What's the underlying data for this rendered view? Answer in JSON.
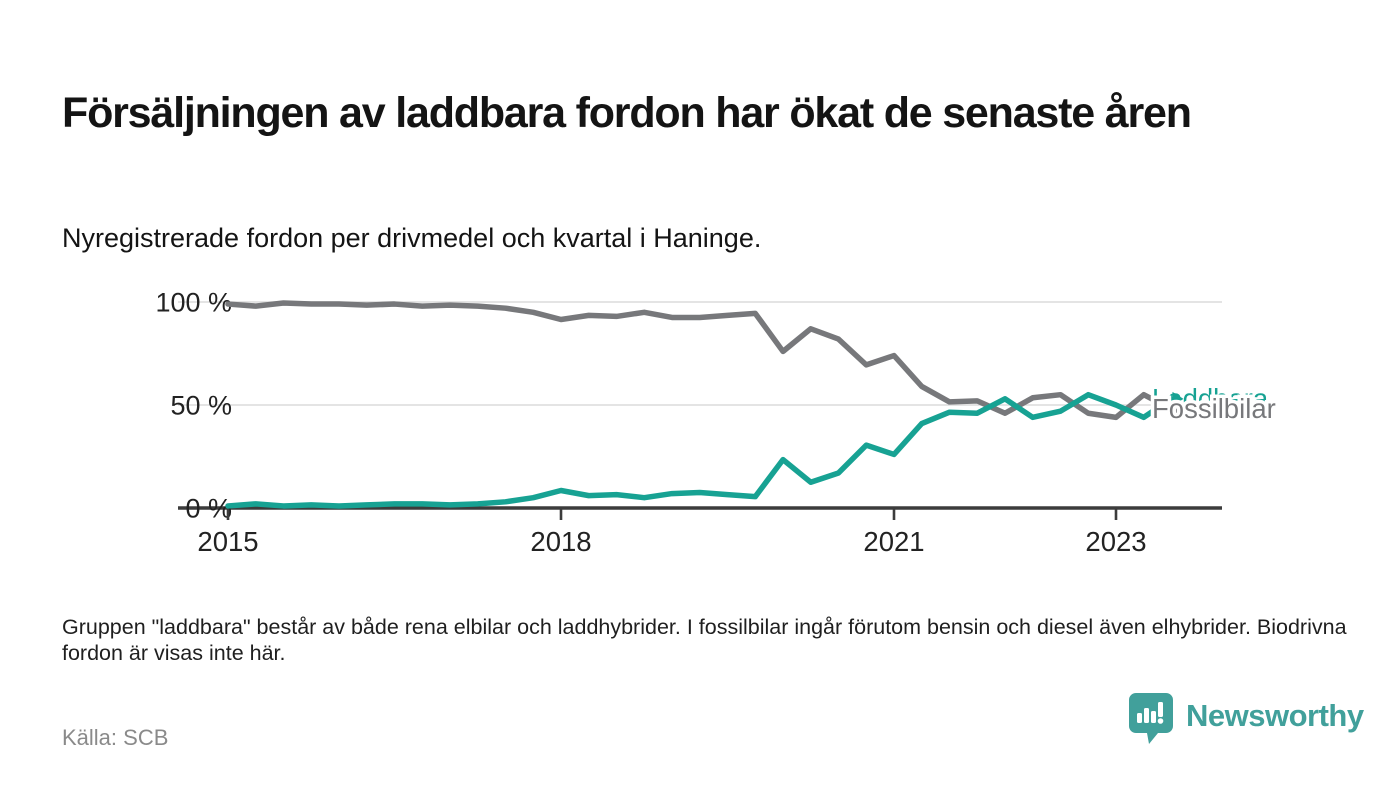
{
  "title": "Försäljningen av laddbara fordon har ökat de senaste åren",
  "subtitle": "Nyregistrerade fordon per drivmedel och kvartal i Haninge.",
  "note": "Gruppen \"laddbara\" består av både rena elbilar och laddhybrider. I fossilbilar ingår förutom bensin och diesel även elhybrider. Biodrivna fordon är visas inte här.",
  "source": "Källa: SCB",
  "branding": {
    "name": "Newsworthy",
    "color": "#41a09b",
    "icon": "speech-bubble-bar-chart-exclamation-icon"
  },
  "colors": {
    "fossil_gray": "#77787b",
    "laddbara_teal": "#17a293",
    "grid": "#dcdcdc",
    "axis": "#3c3c3c",
    "text_dark": "#222222"
  },
  "chart_data": {
    "type": "line",
    "x_unit": "quarter",
    "x_start": 2015.0,
    "x_step": 0.25,
    "x_end": 2023.5,
    "ylim": [
      0,
      100
    ],
    "grid": "horizontal gridlines at 50% and 100%, dark baseline at 0%",
    "legend_position": "end-of-line labels at right",
    "yticks": [
      {
        "value": 0,
        "label": "0 %"
      },
      {
        "value": 50,
        "label": "50 %"
      },
      {
        "value": 100,
        "label": "100 %"
      }
    ],
    "xticks": [
      {
        "value": 2015,
        "label": "2015"
      },
      {
        "value": 2018,
        "label": "2018"
      },
      {
        "value": 2021,
        "label": "2021"
      },
      {
        "value": 2023,
        "label": "2023"
      }
    ],
    "series": [
      {
        "name": "Fossilbilar",
        "color": "#77787b",
        "values": [
          99,
          98,
          99.5,
          99,
          99,
          98.5,
          99,
          98,
          98.5,
          98,
          97,
          95,
          91.5,
          93.5,
          93,
          95,
          92.5,
          92.5,
          93.5,
          94.5,
          76,
          87,
          82,
          69.5,
          74,
          59,
          51.5,
          52,
          46,
          53.5,
          55,
          46,
          44,
          55,
          48
        ]
      },
      {
        "name": "Laddbara",
        "color": "#17a293",
        "values": [
          1,
          2,
          1,
          1.5,
          1,
          1.5,
          2,
          2,
          1.5,
          2,
          3,
          5,
          8.5,
          6,
          6.5,
          5,
          7,
          7.5,
          6.5,
          5.5,
          23.5,
          12.5,
          17,
          30.5,
          26,
          41,
          46.5,
          46,
          53,
          44,
          47,
          55,
          50,
          44,
          53
        ]
      }
    ]
  }
}
